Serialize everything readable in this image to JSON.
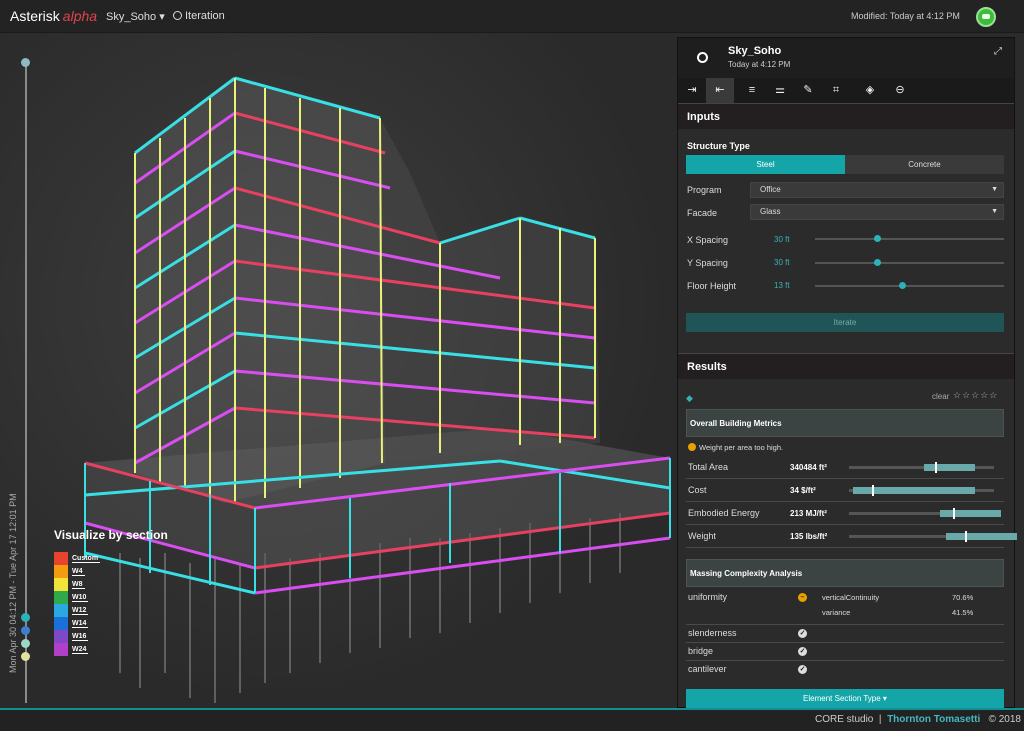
{
  "app": {
    "name": "Asterisk",
    "tag": "alpha"
  },
  "topbar": {
    "project": "Sky_Soho ▾",
    "iteration": "Iteration",
    "modified": "Modified: Today at 4:12 PM"
  },
  "timeline": {
    "range": "Mon Apr 30 04:12 PM - Tue Apr 17 12:01 PM"
  },
  "legend": {
    "title": "Visualize by section",
    "items": [
      {
        "label": "Custom",
        "color": "#e8432f"
      },
      {
        "label": "W4",
        "color": "#f39c12"
      },
      {
        "label": "W8",
        "color": "#f1e33a"
      },
      {
        "label": "W10",
        "color": "#2eaa4a"
      },
      {
        "label": "W12",
        "color": "#2aa8e0"
      },
      {
        "label": "W14",
        "color": "#1b6fd8"
      },
      {
        "label": "W16",
        "color": "#7d49c9"
      },
      {
        "label": "W24",
        "color": "#b23fc7"
      }
    ]
  },
  "panel": {
    "title": "Sky_Soho",
    "subtitle": "Today at 4:12 PM",
    "inputs_title": "Inputs",
    "structure_type_label": "Structure Type",
    "steel": "Steel",
    "concrete": "Concrete",
    "program_label": "Program",
    "program_value": "Office",
    "facade_label": "Facade",
    "facade_value": "Glass",
    "x_spacing_label": "X Spacing",
    "x_spacing_value": "30 ft",
    "y_spacing_label": "Y Spacing",
    "y_spacing_value": "30 ft",
    "floor_height_label": "Floor Height",
    "floor_height_value": "13 ft",
    "iterate": "Iterate",
    "results_title": "Results",
    "clear": "clear",
    "overall_title": "Overall Building Metrics",
    "warning": "Weight per area too high.",
    "metrics": [
      {
        "name": "Total Area",
        "value": "340484 ft²"
      },
      {
        "name": "Cost",
        "value": "34 $/ft²"
      },
      {
        "name": "Embodied Energy",
        "value": "213 MJ/ft²"
      },
      {
        "name": "Weight",
        "value": "135 lbs/ft²"
      }
    ],
    "massing_title": "Massing Complexity Analysis",
    "uniformity": "uniformity",
    "vertical_continuity_label": "verticalContinuity",
    "vertical_continuity_value": "70.6%",
    "variance_label": "variance",
    "variance_value": "41.5%",
    "slenderness": "slenderness",
    "bridge": "bridge",
    "cantilever": "cantilever",
    "element_section_btn": "Element Section Type ▾"
  },
  "footer": {
    "studio": "CORE studio",
    "company": "Thornton Tomasetti",
    "year": "© 2018"
  }
}
